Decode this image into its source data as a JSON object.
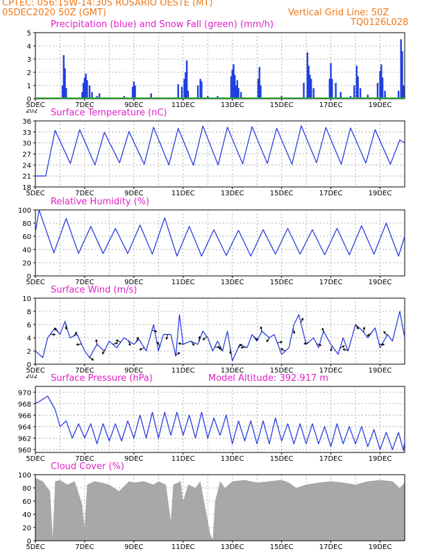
{
  "header": {
    "line1": "CPTEC:   056:15W-14:30S   ROSARIO OESTE (MT)",
    "line2": "05DEC2020 50Z (GMT)",
    "grid_note": "Vertical Grid Line: 50Z",
    "run_id": "TQ0126L028",
    "model_altitude": "Model Altitude: 392.917 m",
    "cut_label": "202"
  },
  "colors": {
    "header": "#f07818",
    "title": "#e020c8",
    "precip": "#1f3fe0",
    "snow": "#22bb22",
    "line": "#2a3fe0",
    "cloud": "#a8a8a8",
    "wind_arrow": "#000000",
    "grid": "#999999"
  },
  "chart_data": [
    {
      "type": "bar",
      "title": "Precipitation (blue) and Snow Fall (green) (mm/h)",
      "x_tick_labels": [
        "5DEC",
        "7DEC",
        "9DEC",
        "11DEC",
        "13DEC",
        "15DEC",
        "17DEC",
        "19DEC"
      ],
      "xlim_days": [
        5,
        20
      ],
      "ylim": [
        0,
        5
      ],
      "y_ticks": [
        0,
        1,
        2,
        3,
        4,
        5
      ],
      "grid": true,
      "series": [
        {
          "name": "precipitation",
          "color": "blue",
          "points": [
            [
              6.1,
              1.0
            ],
            [
              6.15,
              3.3
            ],
            [
              6.2,
              2.3
            ],
            [
              6.25,
              0.8
            ],
            [
              6.9,
              0.5
            ],
            [
              6.95,
              1.2
            ],
            [
              7.0,
              1.6
            ],
            [
              7.05,
              1.9
            ],
            [
              7.1,
              1.4
            ],
            [
              7.2,
              1.0
            ],
            [
              7.3,
              0.5
            ],
            [
              7.5,
              0.2
            ],
            [
              7.6,
              0.4
            ],
            [
              8.0,
              0.1
            ],
            [
              8.6,
              0.2
            ],
            [
              8.95,
              0.9
            ],
            [
              9.0,
              1.3
            ],
            [
              9.05,
              1.0
            ],
            [
              9.7,
              0.4
            ],
            [
              10.0,
              0.1
            ],
            [
              10.8,
              1.1
            ],
            [
              10.95,
              0.9
            ],
            [
              11.05,
              1.5
            ],
            [
              11.1,
              2.0
            ],
            [
              11.15,
              2.9
            ],
            [
              11.2,
              0.6
            ],
            [
              11.6,
              1.0
            ],
            [
              11.7,
              1.5
            ],
            [
              11.75,
              1.3
            ],
            [
              12.0,
              0.2
            ],
            [
              12.4,
              0.2
            ],
            [
              12.6,
              0.1
            ],
            [
              12.95,
              1.7
            ],
            [
              13.0,
              2.2
            ],
            [
              13.05,
              2.6
            ],
            [
              13.1,
              1.8
            ],
            [
              13.15,
              1.0
            ],
            [
              13.2,
              1.4
            ],
            [
              13.25,
              0.8
            ],
            [
              13.35,
              0.5
            ],
            [
              14.05,
              1.5
            ],
            [
              14.1,
              2.4
            ],
            [
              14.15,
              1.0
            ],
            [
              15.0,
              0.2
            ],
            [
              15.9,
              1.2
            ],
            [
              16.05,
              3.5
            ],
            [
              16.1,
              2.5
            ],
            [
              16.15,
              1.8
            ],
            [
              16.2,
              1.5
            ],
            [
              16.3,
              0.8
            ],
            [
              16.95,
              1.5
            ],
            [
              17.0,
              2.7
            ],
            [
              17.05,
              1.5
            ],
            [
              17.2,
              1.2
            ],
            [
              17.4,
              0.5
            ],
            [
              17.8,
              0.2
            ],
            [
              17.95,
              1.0
            ],
            [
              18.05,
              2.5
            ],
            [
              18.1,
              1.7
            ],
            [
              18.2,
              0.8
            ],
            [
              18.5,
              0.3
            ],
            [
              18.9,
              1.2
            ],
            [
              19.0,
              2.1
            ],
            [
              19.05,
              2.6
            ],
            [
              19.1,
              1.6
            ],
            [
              19.2,
              0.6
            ],
            [
              19.75,
              0.6
            ],
            [
              19.85,
              4.5
            ],
            [
              19.9,
              3.6
            ],
            [
              19.95,
              1.0
            ]
          ]
        },
        {
          "name": "snow fall",
          "color": "green",
          "values": "0 throughout"
        }
      ]
    },
    {
      "type": "line",
      "title": "Surface Temperature (nC)",
      "x_tick_labels": [
        "5DEC",
        "7DEC",
        "9DEC",
        "11DEC",
        "13DEC",
        "15DEC",
        "17DEC",
        "19DEC"
      ],
      "xlim_days": [
        5,
        20
      ],
      "ylim": [
        18,
        36
      ],
      "y_ticks": [
        18,
        21,
        24,
        27,
        30,
        33,
        36
      ],
      "grid": true,
      "daily_min": [
        21.0,
        24.4,
        24.0,
        24.6,
        24.2,
        24.0,
        23.9,
        24.0,
        24.3,
        24.4,
        24.2,
        24.6,
        24.2,
        24.5,
        24.2
      ],
      "daily_max": [
        33.4,
        33.6,
        32.9,
        33.1,
        34.3,
        34.0,
        34.6,
        34.3,
        34.4,
        34.0,
        34.7,
        34.2,
        34.1,
        33.6,
        30.8
      ],
      "start": 21.0,
      "end": 30.0
    },
    {
      "type": "line",
      "title": "Relative Humidity (%)",
      "x_tick_labels": [
        "5DEC",
        "7DEC",
        "9DEC",
        "11DEC",
        "13DEC",
        "15DEC",
        "17DEC",
        "19DEC"
      ],
      "xlim_days": [
        5,
        20
      ],
      "ylim": [
        0,
        100
      ],
      "y_ticks": [
        0,
        20,
        40,
        60,
        80,
        100
      ],
      "grid": true,
      "daily_min": [
        35,
        34,
        34,
        34,
        33,
        30,
        30,
        31,
        30,
        33,
        33,
        32,
        32,
        33,
        30
      ],
      "daily_max": [
        100,
        87,
        75,
        72,
        77,
        88,
        75,
        70,
        69,
        70,
        72,
        70,
        72,
        76,
        80
      ],
      "start": 66,
      "end": 60
    },
    {
      "type": "line",
      "title": "Surface Wind (m/s)",
      "x_tick_labels": [
        "5DEC",
        "7DEC",
        "9DEC",
        "11DEC",
        "13DEC",
        "15DEC",
        "17DEC",
        "19DEC"
      ],
      "xlim_days": [
        5,
        20
      ],
      "ylim": [
        0,
        10
      ],
      "y_ticks": [
        0,
        2,
        4,
        6,
        8,
        10
      ],
      "grid": true,
      "points": [
        [
          5.0,
          2.0
        ],
        [
          5.3,
          1.0
        ],
        [
          5.5,
          4.0
        ],
        [
          5.8,
          5.5
        ],
        [
          6.0,
          4.5
        ],
        [
          6.2,
          6.5
        ],
        [
          6.4,
          4.0
        ],
        [
          6.7,
          4.5
        ],
        [
          7.0,
          2.0
        ],
        [
          7.2,
          1.0
        ],
        [
          7.5,
          3.0
        ],
        [
          7.8,
          2.0
        ],
        [
          8.0,
          3.5
        ],
        [
          8.3,
          2.5
        ],
        [
          8.6,
          4.0
        ],
        [
          9.0,
          3.0
        ],
        [
          9.2,
          3.8
        ],
        [
          9.5,
          2.0
        ],
        [
          9.8,
          6.0
        ],
        [
          10.0,
          2.0
        ],
        [
          10.2,
          4.5
        ],
        [
          10.5,
          4.5
        ],
        [
          10.7,
          1.2
        ],
        [
          10.85,
          7.5
        ],
        [
          11.0,
          3.0
        ],
        [
          11.3,
          3.5
        ],
        [
          11.6,
          3.0
        ],
        [
          11.8,
          5.0
        ],
        [
          12.0,
          4.0
        ],
        [
          12.2,
          2.0
        ],
        [
          12.4,
          3.5
        ],
        [
          12.6,
          2.0
        ],
        [
          12.8,
          5.0
        ],
        [
          13.0,
          0.5
        ],
        [
          13.3,
          3.0
        ],
        [
          13.6,
          2.5
        ],
        [
          13.8,
          4.5
        ],
        [
          14.0,
          3.5
        ],
        [
          14.2,
          5.0
        ],
        [
          14.5,
          4.0
        ],
        [
          14.7,
          4.5
        ],
        [
          15.0,
          1.5
        ],
        [
          15.3,
          2.5
        ],
        [
          15.5,
          6.0
        ],
        [
          15.7,
          7.5
        ],
        [
          16.0,
          3.0
        ],
        [
          16.3,
          4.0
        ],
        [
          16.5,
          2.5
        ],
        [
          16.7,
          5.0
        ],
        [
          17.0,
          3.0
        ],
        [
          17.3,
          1.5
        ],
        [
          17.5,
          4.0
        ],
        [
          17.7,
          2.0
        ],
        [
          18.0,
          6.0
        ],
        [
          18.3,
          5.0
        ],
        [
          18.5,
          4.0
        ],
        [
          18.8,
          5.5
        ],
        [
          19.0,
          2.5
        ],
        [
          19.3,
          4.5
        ],
        [
          19.5,
          3.5
        ],
        [
          19.8,
          8.0
        ],
        [
          20.0,
          4.0
        ]
      ],
      "arrow_count": 44
    },
    {
      "type": "line",
      "title": "Surface Pressure (hPa)",
      "x_tick_labels": [
        "5DEC",
        "7DEC",
        "9DEC",
        "11DEC",
        "13DEC",
        "15DEC",
        "17DEC",
        "19DEC"
      ],
      "xlim_days": [
        5,
        20
      ],
      "ylim": [
        959.5,
        971
      ],
      "y_ticks": [
        960,
        962,
        964,
        966,
        968,
        970
      ],
      "grid": true,
      "points": [
        [
          5.0,
          968.0
        ],
        [
          5.2,
          968.5
        ],
        [
          5.5,
          969.3
        ],
        [
          5.8,
          967.0
        ],
        [
          6.0,
          964.0
        ],
        [
          6.25,
          965.0
        ],
        [
          6.5,
          962.0
        ],
        [
          6.75,
          964.5
        ],
        [
          7.0,
          962.0
        ],
        [
          7.25,
          964.5
        ],
        [
          7.5,
          961.0
        ],
        [
          7.75,
          964.5
        ],
        [
          8.0,
          961.5
        ],
        [
          8.25,
          964.5
        ],
        [
          8.5,
          961.5
        ],
        [
          8.75,
          965.0
        ],
        [
          9.0,
          962.0
        ],
        [
          9.25,
          966.0
        ],
        [
          9.5,
          962.0
        ],
        [
          9.75,
          966.5
        ],
        [
          10.0,
          962.0
        ],
        [
          10.25,
          966.5
        ],
        [
          10.5,
          962.5
        ],
        [
          10.75,
          966.5
        ],
        [
          11.0,
          962.5
        ],
        [
          11.25,
          966.0
        ],
        [
          11.5,
          962.0
        ],
        [
          11.75,
          966.5
        ],
        [
          12.0,
          962.0
        ],
        [
          12.25,
          965.5
        ],
        [
          12.5,
          962.5
        ],
        [
          12.75,
          966.0
        ],
        [
          13.0,
          961.0
        ],
        [
          13.25,
          965.0
        ],
        [
          13.5,
          961.5
        ],
        [
          13.75,
          965.0
        ],
        [
          14.0,
          961.0
        ],
        [
          14.25,
          965.0
        ],
        [
          14.5,
          961.0
        ],
        [
          14.75,
          965.5
        ],
        [
          15.0,
          961.5
        ],
        [
          15.25,
          964.5
        ],
        [
          15.5,
          961.0
        ],
        [
          15.75,
          964.5
        ],
        [
          16.0,
          961.0
        ],
        [
          16.25,
          964.5
        ],
        [
          16.5,
          961.0
        ],
        [
          16.75,
          964.0
        ],
        [
          17.0,
          960.5
        ],
        [
          17.25,
          964.5
        ],
        [
          17.5,
          961.0
        ],
        [
          17.75,
          964.0
        ],
        [
          18.0,
          961.0
        ],
        [
          18.25,
          964.0
        ],
        [
          18.5,
          960.5
        ],
        [
          18.75,
          963.5
        ],
        [
          19.0,
          960.0
        ],
        [
          19.25,
          963.0
        ],
        [
          19.5,
          960.0
        ],
        [
          19.75,
          963.0
        ],
        [
          19.95,
          959.8
        ],
        [
          20.0,
          961.5
        ]
      ]
    },
    {
      "type": "area",
      "title": "Cloud Cover (%)",
      "x_tick_labels": [
        "5DEC",
        "7DEC",
        "9DEC",
        "11DEC",
        "13DEC",
        "15DEC",
        "17DEC",
        "19DEC"
      ],
      "xlim_days": [
        5,
        20
      ],
      "ylim": [
        0,
        100
      ],
      "y_ticks": [
        0,
        20,
        40,
        60,
        80,
        100
      ],
      "grid": true,
      "points": [
        [
          5.0,
          95
        ],
        [
          5.3,
          90
        ],
        [
          5.6,
          75
        ],
        [
          5.7,
          5
        ],
        [
          5.8,
          90
        ],
        [
          6.0,
          92
        ],
        [
          6.3,
          85
        ],
        [
          6.6,
          90
        ],
        [
          6.9,
          55
        ],
        [
          7.0,
          20
        ],
        [
          7.1,
          85
        ],
        [
          7.4,
          90
        ],
        [
          7.7,
          88
        ],
        [
          8.0,
          85
        ],
        [
          8.4,
          75
        ],
        [
          8.8,
          90
        ],
        [
          9.0,
          88
        ],
        [
          9.4,
          90
        ],
        [
          9.8,
          85
        ],
        [
          10.0,
          90
        ],
        [
          10.3,
          85
        ],
        [
          10.5,
          30
        ],
        [
          10.6,
          85
        ],
        [
          10.9,
          90
        ],
        [
          11.0,
          60
        ],
        [
          11.2,
          85
        ],
        [
          11.5,
          80
        ],
        [
          11.7,
          90
        ],
        [
          12.0,
          30
        ],
        [
          12.1,
          10
        ],
        [
          12.2,
          2
        ],
        [
          12.3,
          60
        ],
        [
          12.5,
          90
        ],
        [
          12.7,
          80
        ],
        [
          13.0,
          90
        ],
        [
          13.5,
          92
        ],
        [
          14.0,
          88
        ],
        [
          14.5,
          90
        ],
        [
          15.0,
          92
        ],
        [
          15.3,
          88
        ],
        [
          15.6,
          80
        ],
        [
          16.0,
          85
        ],
        [
          16.5,
          88
        ],
        [
          17.0,
          90
        ],
        [
          17.5,
          88
        ],
        [
          18.0,
          85
        ],
        [
          18.5,
          90
        ],
        [
          19.0,
          92
        ],
        [
          19.5,
          90
        ],
        [
          19.8,
          80
        ],
        [
          20.0,
          88
        ]
      ]
    }
  ]
}
